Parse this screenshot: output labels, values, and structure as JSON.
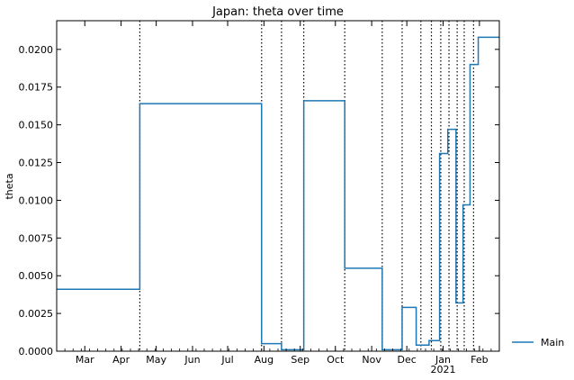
{
  "chart_data": {
    "type": "line",
    "title": "Japan: theta over time",
    "xlabel": "",
    "ylabel": "theta",
    "x_range": [
      "2020-02-06",
      "2021-02-18"
    ],
    "ylim": [
      0,
      0.0219
    ],
    "y_ticks": [
      0.0,
      0.0025,
      0.005,
      0.0075,
      0.01,
      0.0125,
      0.015,
      0.0175,
      0.02
    ],
    "y_tick_labels": [
      "0.0000",
      "0.0025",
      "0.0050",
      "0.0075",
      "0.0100",
      "0.0125",
      "0.0150",
      "0.0175",
      "0.0200"
    ],
    "x_ticks": [
      {
        "date": "2020-03-01",
        "label": "Mar"
      },
      {
        "date": "2020-04-01",
        "label": "Apr"
      },
      {
        "date": "2020-05-01",
        "label": "May"
      },
      {
        "date": "2020-06-01",
        "label": "Jun"
      },
      {
        "date": "2020-07-01",
        "label": "Jul"
      },
      {
        "date": "2020-08-01",
        "label": "Aug"
      },
      {
        "date": "2020-09-01",
        "label": "Sep"
      },
      {
        "date": "2020-10-01",
        "label": "Oct"
      },
      {
        "date": "2020-11-01",
        "label": "Nov"
      },
      {
        "date": "2020-12-01",
        "label": "Dec"
      },
      {
        "date": "2021-01-01",
        "label": "Jan",
        "sublabel": "2021"
      },
      {
        "date": "2021-02-01",
        "label": "Feb"
      }
    ],
    "grid": false,
    "legend": {
      "placement": "outside-bottom-right",
      "entries": [
        "Main"
      ]
    },
    "vlines": [
      "2020-04-17",
      "2020-07-30",
      "2020-08-16",
      "2020-09-04",
      "2020-10-09",
      "2020-11-10",
      "2020-11-27",
      "2020-12-13",
      "2020-12-22",
      "2020-12-30",
      "2021-01-06",
      "2021-01-13",
      "2021-01-19",
      "2021-01-27"
    ],
    "series": [
      {
        "name": "Main",
        "color": "#1f77b4",
        "step": "post",
        "x": [
          "2020-02-06",
          "2020-04-17",
          "2020-07-30",
          "2020-08-16",
          "2020-09-04",
          "2020-10-09",
          "2020-11-10",
          "2020-11-27",
          "2020-12-09",
          "2020-12-20",
          "2020-12-29",
          "2021-01-05",
          "2021-01-12",
          "2021-01-18",
          "2021-01-24",
          "2021-01-31",
          "2021-02-18"
        ],
        "y": [
          0.0041,
          0.0164,
          0.0005,
          0.0001,
          0.0166,
          0.0055,
          0.0001,
          0.0029,
          0.0004,
          0.0007,
          0.0131,
          0.0147,
          0.0032,
          0.0097,
          0.019,
          0.0208,
          0.0208
        ]
      }
    ]
  }
}
